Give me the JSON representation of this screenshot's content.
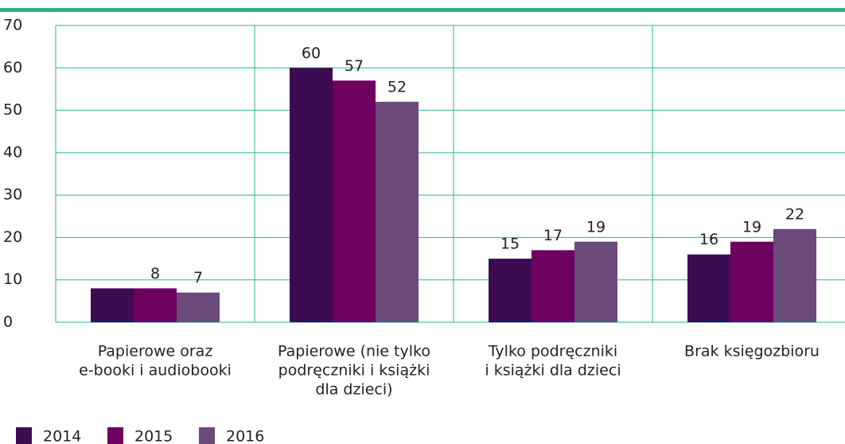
{
  "chart_data": {
    "type": "bar",
    "categories": [
      [
        "Papierowe oraz",
        "e-booki i audiobooki"
      ],
      [
        "Papierowe (nie tylko",
        "podręczniki i książki",
        "dla dzieci)"
      ],
      [
        "Tylko podręczniki",
        "i książki dla dzieci"
      ],
      [
        "Brak księgozbioru"
      ]
    ],
    "series": [
      {
        "name": "2014",
        "color": "#3d0b52",
        "values": [
          8,
          60,
          15,
          16
        ],
        "value_labels": [
          null,
          "60",
          "15",
          "16"
        ]
      },
      {
        "name": "2015",
        "color": "#6e0060",
        "values": [
          8,
          57,
          17,
          19
        ],
        "value_labels": [
          "8",
          "57",
          "17",
          "19"
        ]
      },
      {
        "name": "2016",
        "color": "#6a4a7a",
        "values": [
          7,
          52,
          19,
          22
        ],
        "value_labels": [
          "7",
          "52",
          "19",
          "22"
        ]
      }
    ],
    "ylim": [
      0,
      70
    ],
    "yticks": [
      0,
      10,
      20,
      30,
      40,
      50,
      60,
      70
    ],
    "grid": true,
    "grid_color": "#2db38b",
    "legend": "bottom-left"
  }
}
